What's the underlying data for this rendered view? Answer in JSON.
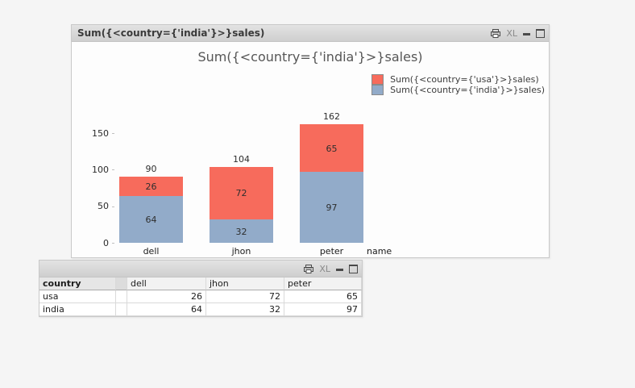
{
  "window_chart": {
    "caption_title": "Sum({<country={'india'}>}sales)",
    "xl_label": "XL"
  },
  "window_table": {
    "xl_label": "XL"
  },
  "chart_data": {
    "type": "bar",
    "stacked": true,
    "title": "Sum({<country={'india'}>}sales)",
    "categories": [
      "dell",
      "jhon",
      "peter"
    ],
    "series": [
      {
        "name": "Sum({<country={'usa'}>}sales)",
        "color": "#f76b5c",
        "values": [
          26,
          72,
          65
        ]
      },
      {
        "name": "Sum({<country={'india'}>}sales)",
        "color": "#92abc9",
        "values": [
          64,
          32,
          97
        ]
      }
    ],
    "totals": [
      90,
      104,
      162
    ],
    "xlabel": "name",
    "ylabel": "",
    "yticks": [
      0,
      50,
      100,
      150
    ],
    "ylim": [
      0,
      150
    ],
    "legend_position": "top-right",
    "grid": false
  },
  "table": {
    "columns": [
      "country",
      "dell",
      "jhon",
      "peter"
    ],
    "rows": [
      {
        "dimension": "usa",
        "values": [
          "26",
          "72",
          "65"
        ]
      },
      {
        "dimension": "india",
        "values": [
          "64",
          "32",
          "97"
        ]
      }
    ]
  }
}
